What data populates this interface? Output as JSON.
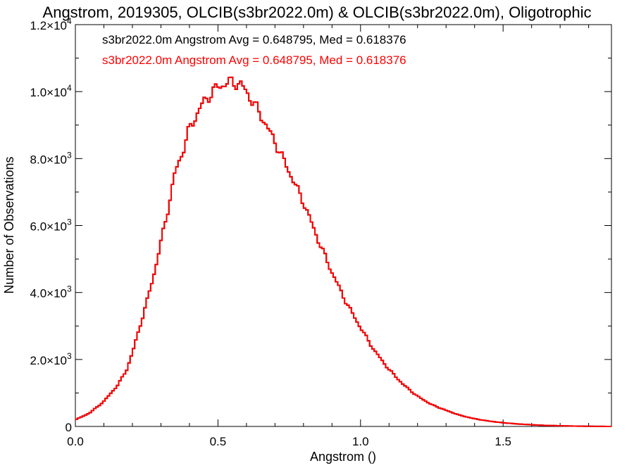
{
  "chart_data": {
    "type": "line",
    "title": "Angstrom, 2019305, OLCIB(s3br2022.0m) & OLCIB(s3br2022.0m), Oligotrophic",
    "xlabel": "Angstrom ()",
    "ylabel": "Number of Observations",
    "xlim": [
      0.0,
      1.88
    ],
    "ylim": [
      0,
      12000
    ],
    "x_ticks": [
      {
        "value": 0.0,
        "label": "0.0"
      },
      {
        "value": 0.5,
        "label": "0.5"
      },
      {
        "value": 1.0,
        "label": "1.0"
      },
      {
        "value": 1.5,
        "label": "1.5"
      }
    ],
    "y_ticks": [
      {
        "value": 0,
        "label": "0",
        "exp": ""
      },
      {
        "value": 2000,
        "label": "2.0×10",
        "exp": "3"
      },
      {
        "value": 4000,
        "label": "4.0×10",
        "exp": "3"
      },
      {
        "value": 6000,
        "label": "6.0×10",
        "exp": "3"
      },
      {
        "value": 8000,
        "label": "8.0×10",
        "exp": "3"
      },
      {
        "value": 10000,
        "label": "1.0×10",
        "exp": "4"
      },
      {
        "value": 12000,
        "label": "1.2×10",
        "exp": "4"
      }
    ],
    "grid": false,
    "annotations": [
      {
        "text": "s3br2022.0m Angstrom Avg = 0.648795, Med = 0.618376",
        "color": "#000000"
      },
      {
        "text": "s3br2022.0m Angstrom Avg = 0.648795, Med = 0.618376",
        "color": "#ff0000"
      }
    ],
    "series": [
      {
        "color": "#ff0000",
        "style": "step",
        "x": [
          0.0,
          0.05,
          0.1,
          0.15,
          0.18,
          0.2,
          0.22,
          0.25,
          0.28,
          0.3,
          0.33,
          0.35,
          0.38,
          0.4,
          0.45,
          0.5,
          0.55,
          0.58,
          0.6,
          0.65,
          0.7,
          0.75,
          0.8,
          0.85,
          0.9,
          0.95,
          1.0,
          1.05,
          1.1,
          1.15,
          1.2,
          1.25,
          1.3,
          1.35,
          1.4,
          1.45,
          1.5,
          1.55,
          1.6,
          1.65,
          1.7,
          1.75,
          1.8,
          1.85,
          1.88
        ],
        "y": [
          200,
          400,
          750,
          1250,
          1700,
          2200,
          2800,
          3700,
          4700,
          5500,
          6700,
          7600,
          8300,
          8900,
          9700,
          10150,
          10300,
          10200,
          10000,
          9300,
          8500,
          7600,
          6700,
          5600,
          4600,
          3700,
          2950,
          2250,
          1700,
          1250,
          900,
          650,
          480,
          330,
          230,
          160,
          110,
          75,
          50,
          30,
          20,
          10,
          5,
          2,
          0
        ]
      }
    ]
  }
}
